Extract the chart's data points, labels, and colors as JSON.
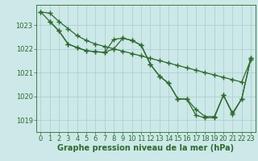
{
  "line1": {
    "x": [
      0,
      1,
      2,
      3,
      4,
      5,
      6,
      7,
      8,
      9,
      10,
      11,
      12,
      13,
      14,
      15,
      16,
      17,
      18,
      19,
      20,
      21,
      22,
      23
    ],
    "y": [
      1023.55,
      1023.5,
      1023.15,
      1022.85,
      1022.55,
      1022.35,
      1022.2,
      1022.1,
      1022.0,
      1021.9,
      1021.8,
      1021.7,
      1021.6,
      1021.5,
      1021.4,
      1021.3,
      1021.2,
      1021.1,
      1021.0,
      1020.9,
      1020.8,
      1020.7,
      1020.6,
      1021.55
    ]
  },
  "line2": {
    "x": [
      1,
      2,
      3,
      4,
      5,
      6,
      7,
      8,
      9,
      10,
      11,
      12,
      13,
      14,
      15,
      16,
      17,
      18,
      19,
      20,
      21,
      22,
      23
    ],
    "y": [
      1023.15,
      1022.75,
      1022.2,
      1022.05,
      1021.92,
      1021.88,
      1021.85,
      1022.4,
      1022.45,
      1022.35,
      1022.15,
      1021.35,
      1020.85,
      1020.55,
      1019.9,
      1019.88,
      1019.45,
      1019.15,
      1019.15,
      1020.05,
      1019.3,
      1019.9,
      1021.6
    ]
  },
  "line3": {
    "x": [
      0,
      1,
      2,
      3,
      4,
      5,
      6,
      7,
      8,
      9,
      10,
      11,
      12,
      13,
      14,
      15,
      16,
      17,
      18,
      19,
      20,
      21,
      22,
      23
    ],
    "y": [
      1023.55,
      1023.15,
      1022.75,
      1022.2,
      1022.05,
      1021.92,
      1021.88,
      1021.85,
      1022.0,
      1022.45,
      1022.35,
      1022.15,
      1021.35,
      1020.85,
      1020.55,
      1019.9,
      1019.88,
      1019.2,
      1019.1,
      1019.1,
      1020.05,
      1019.25,
      1019.9,
      1021.6
    ]
  },
  "color": "#2d6a2d",
  "bg_color": "#cce8e8",
  "grid_color": "#aacccc",
  "xlabel": "Graphe pression niveau de la mer (hPa)",
  "xlim": [
    -0.5,
    23.5
  ],
  "ylim": [
    1018.5,
    1023.85
  ],
  "yticks": [
    1019,
    1020,
    1021,
    1022,
    1023
  ],
  "xticks": [
    0,
    1,
    2,
    3,
    4,
    5,
    6,
    7,
    8,
    9,
    10,
    11,
    12,
    13,
    14,
    15,
    16,
    17,
    18,
    19,
    20,
    21,
    22,
    23
  ],
  "marker": "+",
  "markersize": 4,
  "linewidth": 0.9,
  "xlabel_fontsize": 7,
  "tick_fontsize": 6
}
